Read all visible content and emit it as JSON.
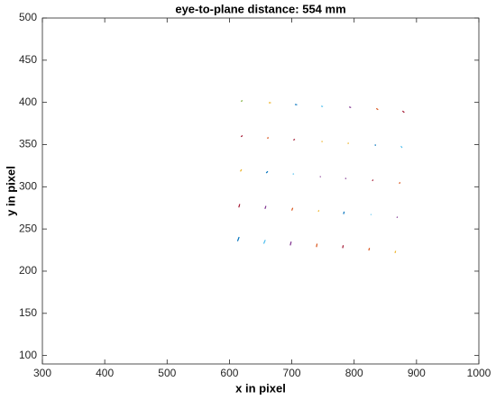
{
  "chart_data": {
    "type": "line",
    "title": "eye-to-plane distance: 554 mm",
    "xlabel": "x in pixel",
    "ylabel": "y in pixel",
    "xlim": [
      300,
      1000
    ],
    "xticks": [
      300,
      400,
      500,
      600,
      700,
      800,
      900,
      1000
    ],
    "ylim": [
      90,
      500
    ],
    "yticks": [
      100,
      150,
      200,
      250,
      300,
      350,
      400,
      450,
      500
    ],
    "grid": false,
    "series": [
      {
        "color": "#77AC30",
        "x": [
          618.5,
          621
        ],
        "values": [
          401.2,
          402.2
        ]
      },
      {
        "color": "#EDB120",
        "x": [
          663,
          666.5
        ],
        "values": [
          399.6,
          399.6
        ]
      },
      {
        "color": "#0072BD",
        "x": [
          705,
          708.5
        ],
        "values": [
          397.6,
          397.2
        ]
      },
      {
        "color": "#4DBEEE",
        "x": [
          747,
          750
        ],
        "values": [
          395.6,
          395
        ]
      },
      {
        "color": "#7E2F8E",
        "x": [
          792,
          795
        ],
        "values": [
          394.6,
          393.8
        ]
      },
      {
        "color": "#D95319",
        "x": [
          835.5,
          838.5
        ],
        "values": [
          392.8,
          391.4
        ]
      },
      {
        "color": "#A2142F",
        "x": [
          877.5,
          880.5
        ],
        "values": [
          389.8,
          388
        ]
      },
      {
        "color": "#A2142F",
        "x": [
          618.5,
          621
        ],
        "values": [
          359.3,
          360.7
        ]
      },
      {
        "color": "#D95319",
        "x": [
          660.5,
          663
        ],
        "values": [
          357.6,
          358.2
        ]
      },
      {
        "color": "#A2142F",
        "x": [
          702.5,
          705
        ],
        "values": [
          355.3,
          356.3
        ]
      },
      {
        "color": "#EDB120",
        "x": [
          747.5,
          749.5
        ],
        "values": [
          353.6,
          353.6
        ]
      },
      {
        "color": "#EDB120",
        "x": [
          789.5,
          791.5
        ],
        "values": [
          351.2,
          351.8
        ]
      },
      {
        "color": "#0072BD",
        "x": [
          833,
          835
        ],
        "values": [
          349.6,
          349.2
        ]
      },
      {
        "color": "#4DBEEE",
        "x": [
          875,
          877
        ],
        "values": [
          348.2,
          346.2
        ]
      },
      {
        "color": "#EDB120",
        "x": [
          617.5,
          619.5
        ],
        "values": [
          318.2,
          320.6
        ]
      },
      {
        "color": "#0072BD",
        "x": [
          659,
          661.5
        ],
        "values": [
          316.3,
          318.3
        ]
      },
      {
        "color": "#4DBEEE",
        "x": [
          701.5,
          703.5
        ],
        "values": [
          315,
          315.4
        ]
      },
      {
        "color": "#7E2F8E",
        "x": [
          745,
          746.5
        ],
        "values": [
          311.8,
          312.2
        ]
      },
      {
        "color": "#7E2F8E",
        "x": [
          785.5,
          787.5
        ],
        "values": [
          309.6,
          310
        ]
      },
      {
        "color": "#A2142F",
        "x": [
          829,
          830.5
        ],
        "values": [
          307,
          308.3
        ]
      },
      {
        "color": "#D95319",
        "x": [
          872.5,
          873.5
        ],
        "values": [
          303.6,
          305.4
        ]
      },
      {
        "color": "#A2142F",
        "x": [
          615,
          616.5
        ],
        "values": [
          275.5,
          279.5
        ]
      },
      {
        "color": "#7E2F8E",
        "x": [
          657,
          658.5
        ],
        "values": [
          273.8,
          277.3
        ]
      },
      {
        "color": "#D95319",
        "x": [
          700,
          701.5
        ],
        "values": [
          271.8,
          275
        ]
      },
      {
        "color": "#EDB120",
        "x": [
          742.5,
          743.5
        ],
        "values": [
          270.6,
          272.2
        ]
      },
      {
        "color": "#0072BD",
        "x": [
          783,
          784
        ],
        "values": [
          267.6,
          270.6
        ]
      },
      {
        "color": "#4DBEEE",
        "x": [
          826.5,
          827.5
        ],
        "values": [
          266.7,
          267.5
        ]
      },
      {
        "color": "#7E2F8E",
        "x": [
          868.5,
          869.5
        ],
        "values": [
          263.3,
          264.5
        ]
      },
      {
        "color": "#0072BD",
        "x": [
          613,
          615.5
        ],
        "values": [
          235.5,
          240.5
        ]
      },
      {
        "color": "#4DBEEE",
        "x": [
          655,
          657.5
        ],
        "values": [
          232.5,
          237
        ]
      },
      {
        "color": "#7E2F8E",
        "x": [
          697.5,
          699
        ],
        "values": [
          230.5,
          235
        ]
      },
      {
        "color": "#D95319",
        "x": [
          739.5,
          740.5
        ],
        "values": [
          228.5,
          232.5
        ]
      },
      {
        "color": "#A2142F",
        "x": [
          781.5,
          782.5
        ],
        "values": [
          227.3,
          230.7
        ]
      },
      {
        "color": "#D95319",
        "x": [
          823.5,
          824.5
        ],
        "values": [
          224.5,
          227.5
        ]
      },
      {
        "color": "#EDB120",
        "x": [
          865.5,
          866.5
        ],
        "values": [
          221.5,
          224
        ]
      }
    ]
  }
}
